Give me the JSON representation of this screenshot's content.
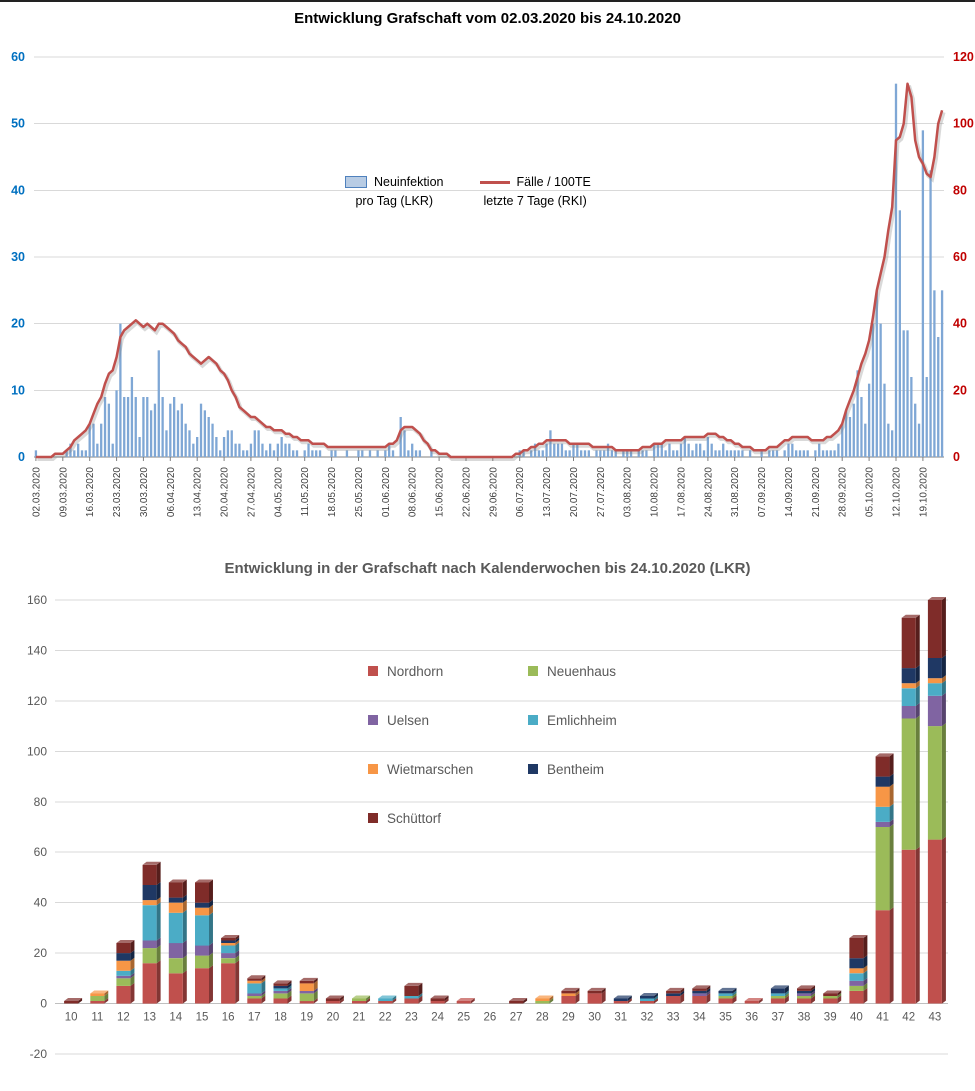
{
  "chart_data": [
    {
      "type": "bar+line",
      "title": "Entwicklung Grafschaft vom 02.03.2020 bis 24.10.2020",
      "legend": [
        {
          "name": "Neuinfektion pro Tag (LKR)",
          "lines": [
            "Neuinfektion",
            "pro Tag (LKR)"
          ],
          "marker": "bar",
          "color": "#B8CCE4"
        },
        {
          "name": "Fälle / 100TE letzte 7 Tage (RKI)",
          "lines": [
            "Fälle / 100TE",
            "letzte 7 Tage (RKI)"
          ],
          "marker": "line",
          "color": "#C0504D"
        }
      ],
      "bar_color": "#7FA7D5",
      "line_color": "#C0504D",
      "left_axis": {
        "label_series": "Neuinfektion pro Tag (LKR)",
        "min": 0,
        "max": 60,
        "ticks": [
          0,
          10,
          20,
          30,
          40,
          50,
          60
        ],
        "color": "#0070C0"
      },
      "right_axis": {
        "label_series": "Fälle / 100TE letzte 7 Tage (RKI)",
        "min": 0,
        "max": 120,
        "ticks": [
          0,
          20,
          40,
          60,
          80,
          100,
          120
        ],
        "color": "#C00000"
      },
      "tick_every_days": 7,
      "x_tick_labels": [
        "02.03.2020",
        "09.03.2020",
        "16.03.2020",
        "23.03.2020",
        "30.03.2020",
        "06.04.2020",
        "13.04.2020",
        "20.04.2020",
        "27.04.2020",
        "04.05.2020",
        "11.05.2020",
        "18.05.2020",
        "25.05.2020",
        "01.06.2020",
        "08.06.2020",
        "15.06.2020",
        "22.06.2020",
        "29.06.2020",
        "06.07.2020",
        "13.07.2020",
        "20.07.2020",
        "27.07.2020",
        "03.08.2020",
        "10.08.2020",
        "17.08.2020",
        "24.08.2020",
        "31.08.2020",
        "07.09.2020",
        "14.09.2020",
        "21.09.2020",
        "28.09.2020",
        "05.10.2020",
        "12.10.2020",
        "19.10.2020"
      ],
      "bars": [
        1,
        0,
        0,
        0,
        0,
        0,
        0,
        0,
        1,
        2,
        1,
        2,
        1,
        1,
        5,
        5,
        2,
        5,
        9,
        8,
        2,
        10,
        20,
        9,
        9,
        12,
        9,
        3,
        9,
        9,
        7,
        8,
        16,
        9,
        4,
        8,
        9,
        7,
        8,
        5,
        4,
        2,
        3,
        8,
        7,
        6,
        5,
        3,
        1,
        3,
        4,
        4,
        2,
        2,
        1,
        1,
        2,
        4,
        4,
        2,
        1,
        2,
        1,
        2,
        3,
        2,
        2,
        1,
        1,
        0,
        1,
        2,
        1,
        1,
        1,
        0,
        0,
        1,
        1,
        0,
        0,
        1,
        0,
        0,
        1,
        1,
        0,
        1,
        0,
        1,
        0,
        1,
        2,
        1,
        0,
        6,
        4,
        1,
        2,
        1,
        1,
        0,
        0,
        1,
        0,
        0,
        0,
        0,
        0,
        0,
        0,
        0,
        0,
        0,
        0,
        0,
        0,
        0,
        0,
        0,
        0,
        0,
        0,
        0,
        0,
        0,
        1,
        1,
        0,
        1,
        2,
        1,
        1,
        2,
        4,
        2,
        2,
        2,
        1,
        1,
        2,
        2,
        1,
        1,
        1,
        0,
        1,
        1,
        1,
        2,
        1,
        1,
        0,
        1,
        1,
        1,
        0,
        1,
        1,
        1,
        0,
        2,
        2,
        2,
        1,
        2,
        1,
        1,
        2,
        3,
        2,
        1,
        2,
        2,
        1,
        3,
        2,
        1,
        1,
        2,
        1,
        1,
        1,
        1,
        1,
        0,
        1,
        0,
        0,
        1,
        0,
        1,
        1,
        1,
        0,
        1,
        2,
        2,
        1,
        1,
        1,
        1,
        0,
        1,
        2,
        1,
        1,
        1,
        1,
        2,
        5,
        7,
        6,
        8,
        13,
        9,
        5,
        11,
        20,
        25,
        20,
        11,
        5,
        4,
        56,
        37,
        19,
        19,
        12,
        8,
        5,
        49,
        12,
        43,
        25,
        18,
        25
      ],
      "line": [
        0,
        0,
        0,
        0,
        0,
        1,
        1,
        1,
        2,
        3,
        5,
        6,
        7,
        8,
        10,
        13,
        16,
        18,
        22,
        25,
        26,
        30,
        36,
        38,
        39,
        40,
        41,
        40,
        39,
        40,
        39,
        38,
        40,
        40,
        39,
        38,
        37,
        35,
        34,
        33,
        31,
        30,
        29,
        28,
        29,
        30,
        29,
        28,
        26,
        25,
        23,
        20,
        18,
        15,
        14,
        13,
        12,
        12,
        11,
        10,
        9,
        9,
        8,
        8,
        8,
        7,
        7,
        6,
        6,
        5,
        5,
        5,
        4,
        4,
        4,
        4,
        3,
        3,
        3,
        3,
        3,
        3,
        3,
        3,
        3,
        3,
        3,
        3,
        3,
        3,
        3,
        3,
        4,
        4,
        5,
        8,
        9,
        9,
        9,
        8,
        7,
        5,
        4,
        2,
        2,
        1,
        1,
        1,
        0,
        0,
        0,
        0,
        0,
        0,
        0,
        0,
        0,
        0,
        0,
        0,
        0,
        0,
        0,
        0,
        0,
        1,
        1,
        2,
        2,
        3,
        3,
        4,
        4,
        5,
        5,
        5,
        5,
        5,
        5,
        4,
        4,
        4,
        4,
        4,
        4,
        3,
        3,
        3,
        3,
        3,
        3,
        2,
        2,
        2,
        2,
        2,
        2,
        2,
        3,
        3,
        3,
        4,
        4,
        4,
        5,
        5,
        5,
        5,
        5,
        6,
        6,
        6,
        6,
        6,
        6,
        7,
        7,
        7,
        6,
        6,
        5,
        5,
        4,
        4,
        3,
        3,
        3,
        2,
        2,
        2,
        2,
        3,
        3,
        3,
        4,
        5,
        5,
        6,
        6,
        6,
        6,
        6,
        5,
        5,
        5,
        5,
        6,
        6,
        7,
        8,
        10,
        14,
        17,
        20,
        24,
        28,
        31,
        35,
        42,
        50,
        55,
        60,
        68,
        75,
        95,
        96,
        100,
        112,
        108,
        95,
        90,
        88,
        85,
        84,
        90,
        100,
        104
      ]
    },
    {
      "type": "stacked-bar",
      "title": "Entwicklung in der Grafschaft nach Kalenderwochen bis 24.10.2020 (LKR)",
      "axis_color": "#595959",
      "ylim": [
        -20,
        160
      ],
      "yticks": [
        160,
        140,
        120,
        100,
        80,
        60,
        40,
        20,
        0,
        -20
      ],
      "categories": [
        "10",
        "11",
        "12",
        "13",
        "14",
        "15",
        "16",
        "17",
        "18",
        "19",
        "20",
        "21",
        "22",
        "23",
        "24",
        "25",
        "26",
        "27",
        "28",
        "29",
        "30",
        "31",
        "32",
        "33",
        "34",
        "35",
        "36",
        "37",
        "38",
        "39",
        "40",
        "41",
        "42",
        "43"
      ],
      "series": [
        {
          "name": "Nordhorn",
          "color": "#C0504D",
          "values": [
            0,
            1,
            7,
            16,
            12,
            14,
            16,
            2,
            2,
            1,
            1,
            1,
            1,
            2,
            1,
            1,
            0,
            0,
            0,
            3,
            4,
            1,
            1,
            3,
            3,
            2,
            1,
            2,
            2,
            2,
            5,
            37,
            61,
            65
          ]
        },
        {
          "name": "Neuenhaus",
          "color": "#9BBB59",
          "values": [
            0,
            2,
            3,
            6,
            6,
            5,
            2,
            1,
            2,
            3,
            0,
            1,
            0,
            0,
            0,
            0,
            0,
            0,
            1,
            0,
            0,
            0,
            0,
            0,
            0,
            1,
            0,
            1,
            1,
            1,
            2,
            33,
            52,
            45
          ]
        },
        {
          "name": "Uelsen",
          "color": "#8064A2",
          "values": [
            0,
            0,
            1,
            3,
            6,
            4,
            2,
            1,
            1,
            1,
            0,
            0,
            0,
            0,
            0,
            0,
            0,
            0,
            0,
            0,
            0,
            0,
            0,
            0,
            1,
            0,
            0,
            0,
            1,
            0,
            2,
            2,
            5,
            12
          ]
        },
        {
          "name": "Emlichheim",
          "color": "#4BACC6",
          "values": [
            0,
            0,
            2,
            14,
            12,
            12,
            3,
            4,
            1,
            0,
            0,
            0,
            1,
            1,
            0,
            0,
            0,
            0,
            0,
            0,
            0,
            0,
            1,
            0,
            0,
            1,
            0,
            1,
            0,
            0,
            3,
            6,
            7,
            5
          ]
        },
        {
          "name": "Wietmarschen",
          "color": "#F79646",
          "values": [
            0,
            1,
            4,
            2,
            4,
            3,
            1,
            1,
            0,
            3,
            0,
            0,
            0,
            0,
            0,
            0,
            0,
            0,
            1,
            1,
            0,
            0,
            0,
            0,
            0,
            0,
            0,
            0,
            0,
            0,
            2,
            8,
            2,
            2
          ]
        },
        {
          "name": "Bentheim",
          "color": "#1F3864",
          "values": [
            0,
            0,
            3,
            6,
            2,
            2,
            1,
            0,
            1,
            0,
            0,
            0,
            0,
            0,
            0,
            0,
            0,
            0,
            0,
            0,
            0,
            1,
            1,
            1,
            1,
            1,
            0,
            2,
            1,
            0,
            4,
            4,
            6,
            8
          ]
        },
        {
          "name": "Schüttorf",
          "color": "#7F2C29",
          "values": [
            1,
            0,
            4,
            8,
            6,
            8,
            1,
            1,
            1,
            1,
            1,
            0,
            0,
            4,
            1,
            0,
            0,
            1,
            0,
            1,
            1,
            0,
            0,
            1,
            1,
            0,
            0,
            0,
            1,
            1,
            8,
            8,
            20,
            23
          ]
        }
      ],
      "legend_position": "inside upper middle, two columns"
    }
  ]
}
